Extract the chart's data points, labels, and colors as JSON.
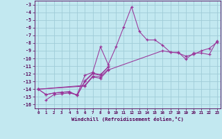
{
  "title": "",
  "xlabel": "Windchill (Refroidissement éolien,°C)",
  "ylabel": "",
  "background_color": "#c2e8f0",
  "grid_color": "#a0ccd8",
  "line_color": "#993399",
  "x_ticks": [
    0,
    1,
    2,
    3,
    4,
    5,
    6,
    7,
    8,
    9,
    10,
    11,
    12,
    13,
    14,
    15,
    16,
    17,
    18,
    19,
    20,
    21,
    22,
    23
  ],
  "y_ticks": [
    -3,
    -4,
    -5,
    -6,
    -7,
    -8,
    -9,
    -10,
    -11,
    -12,
    -13,
    -14,
    -15,
    -16
  ],
  "xlim": [
    -0.5,
    23.5
  ],
  "ylim": [
    -16.5,
    -2.5
  ],
  "series": [
    [
      null,
      -15.4,
      -14.7,
      -14.6,
      -14.5,
      -14.7,
      -12.2,
      -11.8,
      -8.5,
      -10.8,
      -8.5,
      -5.9,
      -3.3,
      -6.5,
      -7.6,
      -7.6,
      -8.3,
      -9.2,
      -9.2,
      -10.1,
      -9.3,
      -9.3,
      -9.5,
      -7.7
    ],
    [
      -14.0,
      -14.7,
      -14.5,
      -14.4,
      -14.4,
      -14.8,
      -12.9,
      -11.9,
      -12.1,
      -11.1,
      null,
      null,
      null,
      null,
      null,
      null,
      null,
      null,
      null,
      null,
      null,
      null,
      null,
      null
    ],
    [
      -14.0,
      -14.7,
      -14.5,
      -14.4,
      -14.3,
      -14.8,
      -13.0,
      -12.0,
      -12.2,
      -11.1,
      null,
      null,
      null,
      null,
      null,
      null,
      null,
      null,
      null,
      null,
      null,
      null,
      null,
      null
    ],
    [
      -14.0,
      null,
      null,
      null,
      null,
      null,
      -13.5,
      -12.3,
      -12.4,
      -11.4,
      null,
      null,
      null,
      null,
      null,
      null,
      null,
      null,
      null,
      null,
      null,
      null,
      null,
      null
    ],
    [
      -14.0,
      null,
      null,
      null,
      null,
      null,
      -13.6,
      -12.4,
      -12.6,
      -11.5,
      null,
      null,
      null,
      null,
      null,
      null,
      -9.0,
      -9.2,
      -9.3,
      -9.7,
      -9.5,
      -9.0,
      -8.7,
      -7.9
    ]
  ]
}
